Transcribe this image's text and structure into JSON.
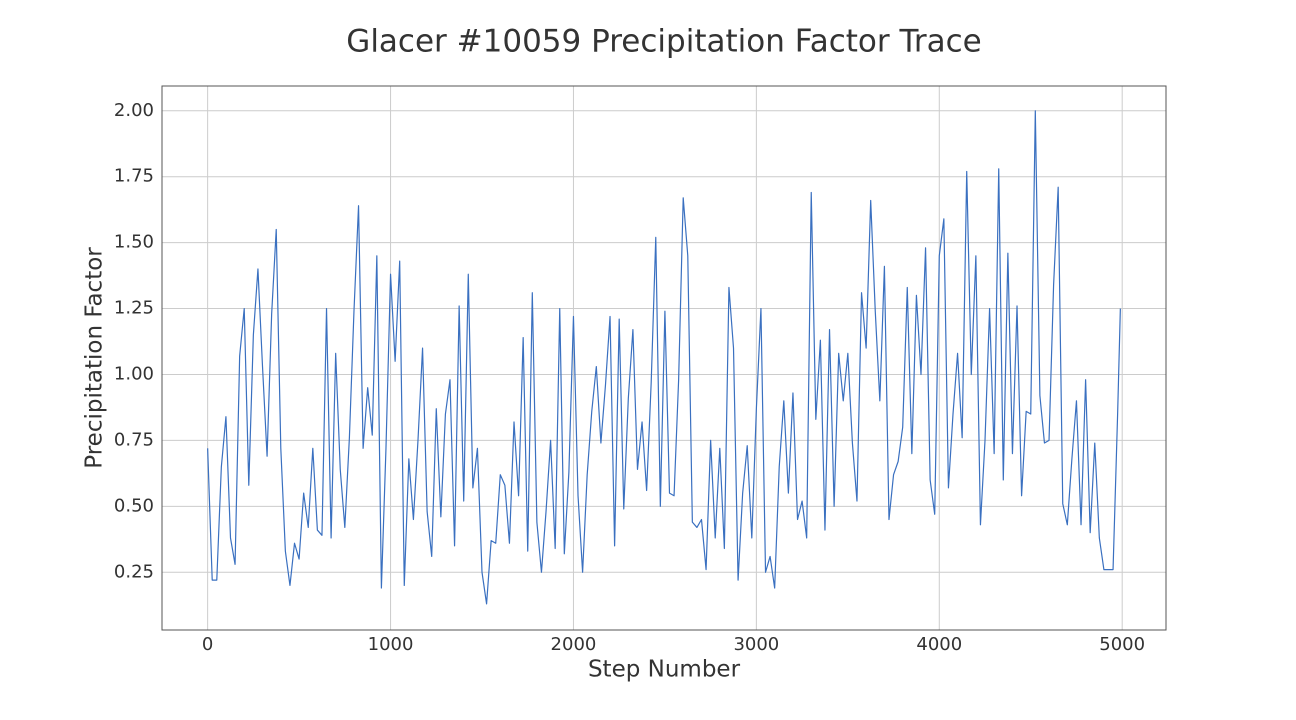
{
  "chart_data": {
    "type": "line",
    "title": "Glacer #10059 Precipitation Factor Trace",
    "x_label": "Step Number",
    "y_label": "Precipitation Factor",
    "xlim": [
      -249.5,
      5239.5
    ],
    "ylim": [
      0.031,
      2.094
    ],
    "xticks": [
      0,
      1000,
      2000,
      3000,
      4000,
      5000
    ],
    "yticks": [
      0.25,
      {
        "value": 0.5,
        "label": "0.50"
      },
      0.75,
      {
        "value": 1.0,
        "label": "1.00"
      },
      1.25,
      {
        "value": 1.5,
        "label": "1.50"
      },
      1.75,
      {
        "value": 2.0,
        "label": "2.00"
      }
    ],
    "grid": true,
    "x": [
      0,
      25,
      50,
      75,
      100,
      125,
      150,
      175,
      200,
      225,
      250,
      275,
      300,
      325,
      350,
      375,
      400,
      425,
      450,
      475,
      500,
      525,
      550,
      575,
      600,
      625,
      650,
      675,
      700,
      725,
      750,
      775,
      800,
      825,
      850,
      875,
      900,
      925,
      950,
      975,
      1000,
      1025,
      1050,
      1075,
      1100,
      1125,
      1150,
      1175,
      1200,
      1225,
      1250,
      1275,
      1300,
      1325,
      1350,
      1375,
      1400,
      1425,
      1450,
      1475,
      1500,
      1525,
      1550,
      1575,
      1600,
      1625,
      1650,
      1675,
      1700,
      1725,
      1750,
      1775,
      1800,
      1825,
      1850,
      1875,
      1900,
      1925,
      1950,
      1975,
      2000,
      2025,
      2050,
      2075,
      2100,
      2125,
      2150,
      2175,
      2200,
      2225,
      2250,
      2275,
      2300,
      2325,
      2350,
      2375,
      2400,
      2425,
      2450,
      2475,
      2500,
      2525,
      2550,
      2575,
      2600,
      2625,
      2650,
      2675,
      2700,
      2725,
      2750,
      2775,
      2800,
      2825,
      2850,
      2875,
      2900,
      2925,
      2950,
      2975,
      3000,
      3025,
      3050,
      3075,
      3100,
      3125,
      3150,
      3175,
      3200,
      3225,
      3250,
      3275,
      3300,
      3325,
      3350,
      3375,
      3400,
      3425,
      3450,
      3475,
      3500,
      3525,
      3550,
      3575,
      3600,
      3625,
      3650,
      3675,
      3700,
      3725,
      3750,
      3775,
      3800,
      3825,
      3850,
      3875,
      3900,
      3925,
      3950,
      3975,
      4000,
      4025,
      4050,
      4075,
      4100,
      4125,
      4150,
      4175,
      4200,
      4225,
      4250,
      4275,
      4300,
      4325,
      4350,
      4375,
      4400,
      4425,
      4450,
      4475,
      4500,
      4525,
      4550,
      4575,
      4600,
      4625,
      4650,
      4675,
      4700,
      4725,
      4750,
      4775,
      4800,
      4825,
      4850,
      4875,
      4900,
      4925,
      4950,
      4975,
      4990
    ],
    "series": [
      {
        "color": "#3a70c0",
        "values": [
          0.72,
          0.22,
          0.22,
          0.65,
          0.84,
          0.38,
          0.28,
          1.07,
          1.25,
          0.58,
          1.15,
          1.4,
          1.03,
          0.69,
          1.23,
          1.55,
          0.72,
          0.33,
          0.2,
          0.36,
          0.3,
          0.55,
          0.42,
          0.72,
          0.41,
          0.39,
          1.25,
          0.38,
          1.08,
          0.64,
          0.42,
          0.76,
          1.24,
          1.64,
          0.72,
          0.95,
          0.77,
          1.45,
          0.19,
          0.72,
          1.38,
          1.05,
          1.43,
          0.2,
          0.68,
          0.45,
          0.75,
          1.1,
          0.48,
          0.31,
          0.87,
          0.46,
          0.85,
          0.98,
          0.35,
          1.26,
          0.52,
          1.38,
          0.57,
          0.72,
          0.25,
          0.13,
          0.37,
          0.36,
          0.62,
          0.58,
          0.36,
          0.82,
          0.54,
          1.14,
          0.33,
          1.31,
          0.44,
          0.25,
          0.48,
          0.75,
          0.34,
          1.25,
          0.32,
          0.63,
          1.22,
          0.54,
          0.25,
          0.62,
          0.86,
          1.03,
          0.74,
          0.96,
          1.22,
          0.35,
          1.21,
          0.49,
          0.91,
          1.17,
          0.64,
          0.82,
          0.56,
          0.97,
          1.52,
          0.5,
          1.24,
          0.55,
          0.54,
          0.98,
          1.67,
          1.45,
          0.44,
          0.42,
          0.45,
          0.26,
          0.75,
          0.38,
          0.72,
          0.34,
          1.33,
          1.1,
          0.22,
          0.55,
          0.73,
          0.38,
          0.87,
          1.25,
          0.25,
          0.31,
          0.19,
          0.65,
          0.9,
          0.55,
          0.93,
          0.45,
          0.52,
          0.38,
          1.69,
          0.83,
          1.13,
          0.41,
          1.17,
          0.5,
          1.08,
          0.9,
          1.08,
          0.74,
          0.52,
          1.31,
          1.1,
          1.66,
          1.24,
          0.9,
          1.41,
          0.45,
          0.62,
          0.67,
          0.8,
          1.33,
          0.7,
          1.3,
          1.0,
          1.48,
          0.6,
          0.47,
          1.45,
          1.59,
          0.57,
          0.85,
          1.08,
          0.76,
          1.77,
          1.0,
          1.45,
          0.43,
          0.75,
          1.25,
          0.7,
          1.78,
          0.6,
          1.46,
          0.7,
          1.26,
          0.54,
          0.86,
          0.85,
          2.0,
          0.92,
          0.74,
          0.75,
          1.34,
          1.71,
          0.51,
          0.43,
          0.68,
          0.9,
          0.43,
          0.98,
          0.4,
          0.74,
          0.38,
          0.26,
          0.26,
          0.26,
          0.85,
          1.25
        ]
      }
    ]
  }
}
